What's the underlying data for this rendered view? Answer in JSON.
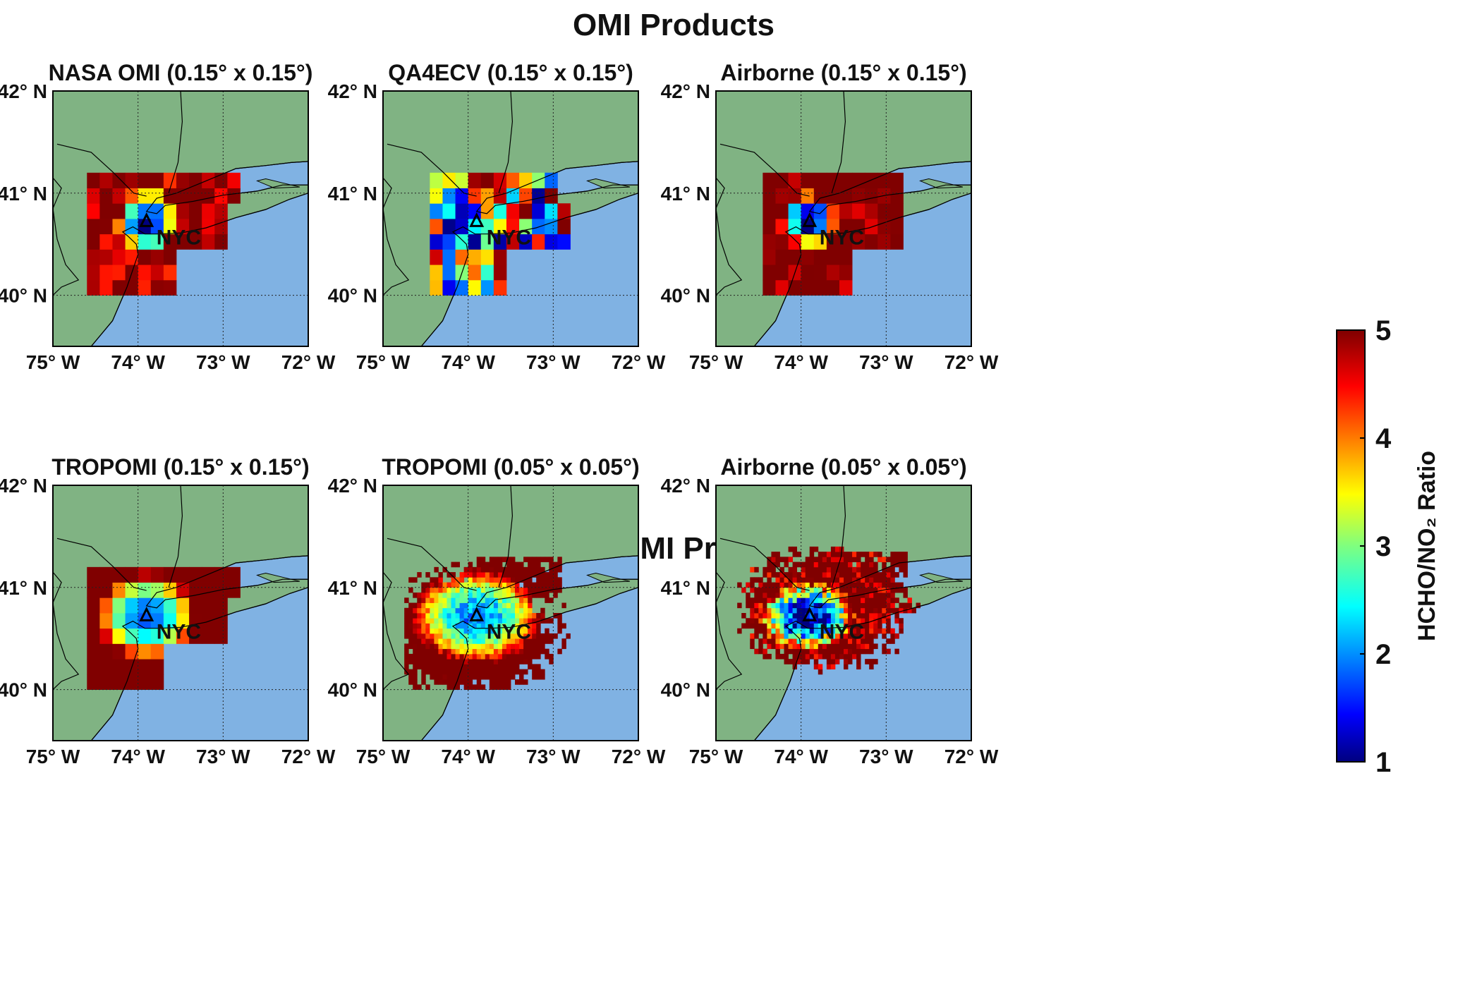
{
  "sections": [
    {
      "title": "OMI Products"
    },
    {
      "title": "TROPOMI Products"
    }
  ],
  "panels": [
    {
      "title": "NASA OMI (0.15° x 0.15°)",
      "section": 0,
      "resolution_deg": 0.15,
      "pattern": "nasa_omi"
    },
    {
      "title": "QA4ECV (0.15° x 0.15°)",
      "section": 0,
      "resolution_deg": 0.15,
      "pattern": "qa4ecv"
    },
    {
      "title": "Airborne (0.15° x 0.15°)",
      "section": 0,
      "resolution_deg": 0.15,
      "pattern": "airborne_coarse"
    },
    {
      "title": "TROPOMI (0.15° x 0.15°)",
      "section": 1,
      "resolution_deg": 0.15,
      "pattern": "tropomi_coarse"
    },
    {
      "title": "TROPOMI (0.05° x 0.05°)",
      "section": 1,
      "resolution_deg": 0.05,
      "pattern": "tropomi_fine"
    },
    {
      "title": "Airborne (0.05° x 0.05°)",
      "section": 1,
      "resolution_deg": 0.05,
      "pattern": "airborne_fine"
    }
  ],
  "map": {
    "lon_range": [
      -75,
      -72
    ],
    "lat_range": [
      39.5,
      42
    ],
    "lon_ticks": [
      {
        "value": -75,
        "label": "75° W"
      },
      {
        "value": -74,
        "label": "74° W"
      },
      {
        "value": -73,
        "label": "73° W"
      },
      {
        "value": -72,
        "label": "72° W"
      }
    ],
    "lat_ticks": [
      {
        "value": 42,
        "label": "42° N"
      },
      {
        "value": 41,
        "label": "41° N"
      },
      {
        "value": 40,
        "label": "40° N"
      }
    ],
    "gridlines_lon": [
      -74,
      -73
    ],
    "gridlines_lat": [
      41,
      40
    ],
    "land_color": "#80b383",
    "water_color": "#80b2e3",
    "city": {
      "label": "NYC",
      "lon": -73.9,
      "lat": 40.72,
      "marker": "triangle-icon"
    }
  },
  "colorbar": {
    "title": "HCHO/NO₂ Ratio",
    "min": 1,
    "max": 5,
    "ticks": [
      {
        "value": 5,
        "label": "5"
      },
      {
        "value": 4,
        "label": "4"
      },
      {
        "value": 3,
        "label": "3"
      },
      {
        "value": 2,
        "label": "2"
      },
      {
        "value": 1,
        "label": "1"
      }
    ],
    "colormap": "jet"
  },
  "chart_data": {
    "type": "heatmap",
    "panels": [
      "NASA OMI (0.15° x 0.15°)",
      "QA4ECV (0.15° x 0.15°)",
      "Airborne (0.15° x 0.15°)",
      "TROPOMI (0.15° x 0.15°)",
      "TROPOMI (0.05° x 0.05°)",
      "Airborne (0.05° x 0.05°)"
    ],
    "xlim": [
      -75,
      -72
    ],
    "ylim": [
      39.5,
      42
    ],
    "value_range": [
      1,
      5
    ]
  }
}
